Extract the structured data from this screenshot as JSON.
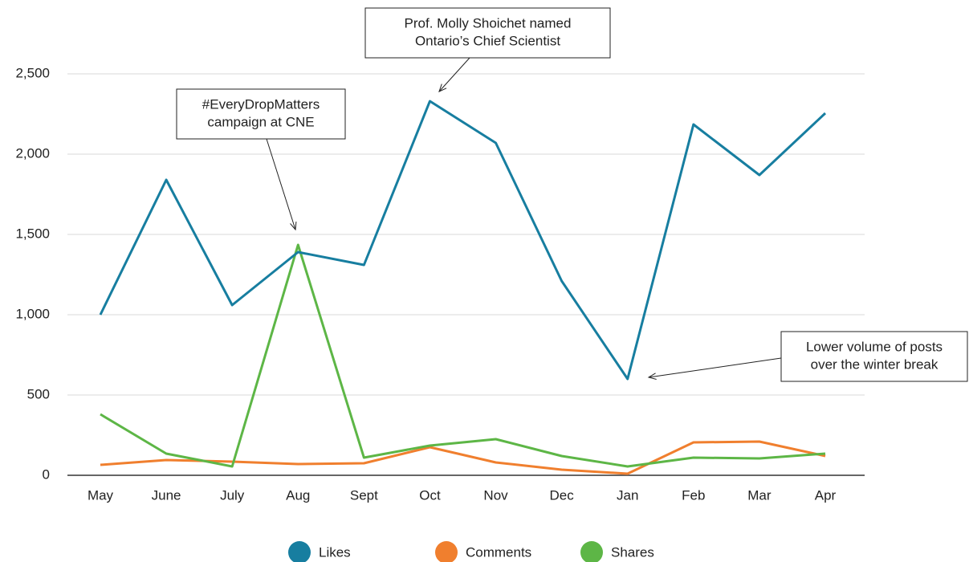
{
  "chart_data": {
    "type": "line",
    "categories": [
      "May",
      "June",
      "July",
      "Aug",
      "Sept",
      "Oct",
      "Nov",
      "Dec",
      "Jan",
      "Feb",
      "Mar",
      "Apr"
    ],
    "series": [
      {
        "name": "Likes",
        "color": "#177ea0",
        "values": [
          1000,
          1840,
          1060,
          1390,
          1310,
          2330,
          2070,
          1210,
          600,
          2185,
          1870,
          2255
        ]
      },
      {
        "name": "Comments",
        "color": "#f07f2e",
        "values": [
          65,
          95,
          85,
          70,
          75,
          175,
          80,
          35,
          10,
          205,
          210,
          120
        ]
      },
      {
        "name": "Shares",
        "color": "#5db646",
        "values": [
          380,
          135,
          55,
          1435,
          110,
          185,
          225,
          120,
          55,
          110,
          105,
          135
        ]
      }
    ],
    "ylim": [
      0,
      2500
    ],
    "yticks": [
      0,
      500,
      {
        "value": 1000,
        "label": "1,000"
      },
      {
        "value": 1500,
        "label": "1,500"
      },
      {
        "value": 2000,
        "label": "2,000"
      },
      {
        "value": 2500,
        "label": "2,500"
      }
    ],
    "grid": true,
    "legend": "bottom",
    "annotations": [
      {
        "lines": [
          "Prof. Molly Shoichet named",
          "Ontario’s Chief Scientist"
        ]
      },
      {
        "lines": [
          "#EveryDropMatters",
          "campaign at CNE"
        ]
      },
      {
        "lines": [
          "Lower volume of posts",
          "over the winter break"
        ]
      }
    ]
  }
}
